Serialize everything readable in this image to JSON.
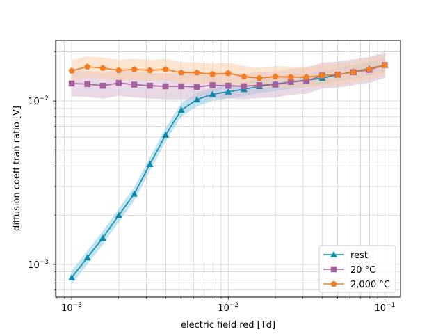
{
  "chart_data": {
    "type": "line",
    "title": "",
    "xlabel": "electric field red [Td]",
    "ylabel": "diffusion coeff tran ratio [V]",
    "xscale": "log",
    "yscale": "log",
    "xlim": [
      0.00079,
      0.126
    ],
    "ylim": [
      0.00063,
      0.0235
    ],
    "grid": "major and minor",
    "legend_position": "lower-right",
    "x_tick_labels": [
      {
        "value": 0.001,
        "base": "10",
        "exp": "−3"
      },
      {
        "value": 0.01,
        "base": "10",
        "exp": "−2"
      },
      {
        "value": 0.1,
        "base": "10",
        "exp": "−1"
      }
    ],
    "y_tick_labels": [
      {
        "value": 0.001,
        "base": "10",
        "exp": "−3"
      },
      {
        "value": 0.01,
        "base": "10",
        "exp": "−2"
      }
    ],
    "x": [
      0.001,
      0.00126,
      0.00158,
      0.002,
      0.00251,
      0.00316,
      0.00398,
      0.00501,
      0.00631,
      0.00794,
      0.01,
      0.0126,
      0.0158,
      0.02,
      0.0251,
      0.0316,
      0.0398,
      0.0501,
      0.0631,
      0.0794,
      0.1
    ],
    "series": [
      {
        "name": "rest",
        "color": "#0b8aac",
        "band_color": "#8ecde2",
        "marker": "triangle",
        "values": [
          0.00083,
          0.0011,
          0.00145,
          0.002,
          0.0027,
          0.0041,
          0.0062,
          0.0088,
          0.0102,
          0.011,
          0.0114,
          0.0118,
          0.0123,
          0.0127,
          0.0131,
          0.0134,
          0.0138,
          0.0145,
          0.0151,
          0.0158,
          0.0166
        ],
        "band_rel": 0.1
      },
      {
        "name": "20 °C",
        "color": "#a35f9b",
        "band_color": "#d7b9d4",
        "marker": "square",
        "values": [
          0.0128,
          0.0127,
          0.0124,
          0.0129,
          0.0126,
          0.0124,
          0.0123,
          0.0123,
          0.0122,
          0.0125,
          0.0124,
          0.0123,
          0.0125,
          0.0126,
          0.0131,
          0.0133,
          0.0143,
          0.0145,
          0.015,
          0.0155,
          0.0166
        ],
        "band_rel": 0.2
      },
      {
        "name": "2,000 °C",
        "color": "#f57c20",
        "band_color": "#f9cfac",
        "marker": "pentagon",
        "values": [
          0.0153,
          0.0162,
          0.0159,
          0.0154,
          0.0156,
          0.0154,
          0.0156,
          0.0149,
          0.0149,
          0.0146,
          0.0148,
          0.0141,
          0.0138,
          0.0141,
          0.014,
          0.014,
          0.0143,
          0.0145,
          0.015,
          0.0157,
          0.0166
        ],
        "band_rel": 0.16
      }
    ]
  }
}
